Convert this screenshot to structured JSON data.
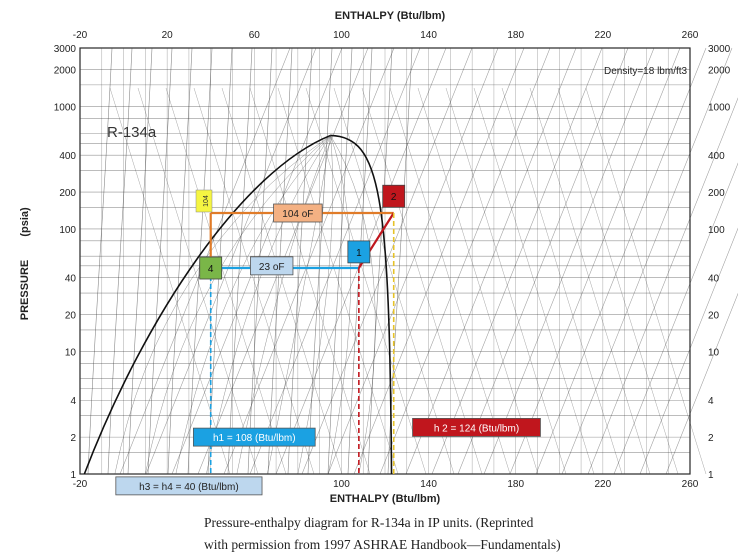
{
  "chart_data": {
    "type": "pressure-enthalpy diagram",
    "title": "",
    "refrigerant_label": "R-134a",
    "x_axis_top_label": "ENTHALPY (Btu/lbm)",
    "x_axis_bottom_label": "ENTHALPY (Btu/lbm)",
    "y_axis_label": "PRESSURE",
    "y_axis_unit": "(psia)",
    "x_ticks_top": [
      "-20",
      "20",
      "60",
      "100",
      "140",
      "180",
      "220",
      "260"
    ],
    "x_ticks_bottom": [
      "-20",
      "20",
      "60",
      "100",
      "140",
      "180",
      "220",
      "260"
    ],
    "x_tick_values": [
      -20,
      20,
      60,
      100,
      140,
      180,
      220,
      260
    ],
    "xlim": [
      -20,
      260
    ],
    "y_scale": "log",
    "ylim": [
      1,
      3000
    ],
    "y_ticks_left": [
      "3000",
      "2000",
      "1000",
      "400",
      "200",
      "100",
      "40",
      "20",
      "10",
      "4",
      "2",
      "1"
    ],
    "y_ticks_right": [
      "3000",
      "2000",
      "1000",
      "400",
      "200",
      "100",
      "40",
      "20",
      "10",
      "4",
      "2",
      "1"
    ],
    "y_tick_values": [
      3000,
      2000,
      1000,
      400,
      200,
      100,
      40,
      20,
      10,
      4,
      2,
      1
    ],
    "density_label": "Density=18 lbm/ft3",
    "cycle_points": [
      {
        "label": "1",
        "h": 108,
        "p": 65,
        "color": "#1ba1e2"
      },
      {
        "label": "2",
        "h": 124,
        "p": 185,
        "color": "#c0161d"
      },
      {
        "label": "4",
        "h": 40,
        "p": 48,
        "color": "#7ab648"
      }
    ],
    "annotations": [
      {
        "id": "cond-temp",
        "text": "104 oF",
        "h": 80,
        "p": 135,
        "color": "#f4b183",
        "text_color": "#222222"
      },
      {
        "id": "evap-temp",
        "text": "23 oF",
        "h": 68,
        "p": 50,
        "color": "#bdd7ee",
        "text_color": "#222222"
      },
      {
        "id": "h1",
        "text": "h1 = 108 (Btu/lbm)",
        "h": 60,
        "p": 2.0,
        "color": "#1ba1e2",
        "text_color": "#ffffff"
      },
      {
        "id": "h2",
        "text": "h 2 = 124 (Btu/lbm)",
        "h": 162,
        "p": 2.4,
        "color": "#c0161d",
        "text_color": "#ffffff"
      },
      {
        "id": "h3",
        "text": "h3 = h4 = 40 (Btu/lbm)",
        "h": 30,
        "p": 0.8,
        "color": "#bdd7ee",
        "text_color": "#222222"
      }
    ],
    "cycle_lines": [
      {
        "from": [
          40,
          135
        ],
        "to": [
          40,
          48
        ],
        "color": "#e07b28"
      },
      {
        "from": [
          40,
          135
        ],
        "to": [
          124,
          135
        ],
        "color": "#e07b28"
      },
      {
        "from": [
          40,
          48
        ],
        "to": [
          108,
          48
        ],
        "color": "#1ba1e2"
      },
      {
        "from": [
          108,
          48
        ],
        "to": [
          124,
          135
        ],
        "color": "#c0161d"
      }
    ],
    "enthalpy_drop_lines": [
      {
        "h": 108,
        "color": "#c0161d"
      },
      {
        "h": 124,
        "color": "#e6c229"
      },
      {
        "h": 40,
        "color": "#1ba1e2"
      }
    ],
    "temperature_sticker": {
      "text": "104",
      "color": "#f5f542"
    },
    "grid": true
  },
  "caption": {
    "line1": "Pressure-enthalpy diagram for R-134a in IP units. (Reprinted",
    "line2": "with permission from 1997 ASHRAE Handbook—Fundamentals)"
  },
  "colors": {
    "paper": "#ffffff",
    "grid": "#3a3a3a",
    "orange": "#e07b28",
    "blue": "#1ba1e2",
    "red": "#c0161d",
    "green": "#7ab648"
  }
}
